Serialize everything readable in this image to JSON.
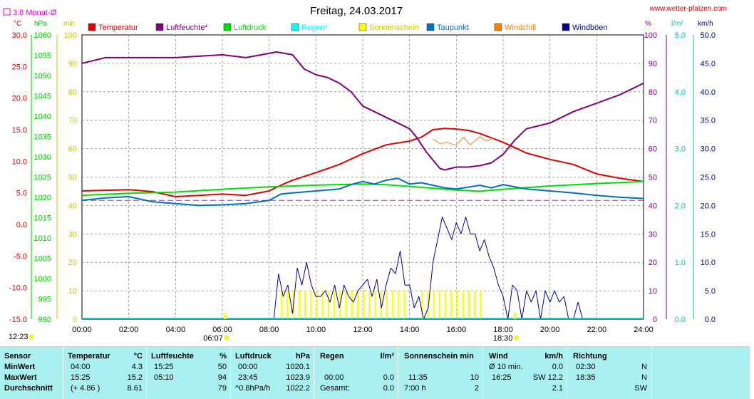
{
  "header": {
    "title": "Freitag, 24.03.2017",
    "website": "www.wetter-pfalzen.com",
    "monthly_avg_label": "3.8 Monat-Ø"
  },
  "axes": {
    "left_units": [
      "°C",
      "hPa",
      "min"
    ],
    "right_units": [
      "%",
      "l/m²",
      "km/h"
    ],
    "temp_ticks": [
      "30.0",
      "25.0",
      "20.0",
      "15.0",
      "10.0",
      "5.0",
      "0.0",
      "-5.0",
      "-10.0",
      "-15.0"
    ],
    "pressure_ticks": [
      "1060",
      "1055",
      "1050",
      "1045",
      "1040",
      "1035",
      "1030",
      "1025",
      "1020",
      "1015",
      "1010",
      "1005",
      "1000",
      "995",
      "990"
    ],
    "min_ticks": [
      "100",
      "90",
      "80",
      "70",
      "60",
      "50",
      "40",
      "30",
      "20",
      "10",
      "0"
    ],
    "humidity_ticks": [
      "100",
      "90",
      "80",
      "70",
      "60",
      "50",
      "40",
      "30",
      "20",
      "10",
      "0"
    ],
    "rain_ticks": [
      "5.0",
      "4.0",
      "3.0",
      "2.0",
      "1.0",
      "0.0"
    ],
    "wind_ticks": [
      "50.0",
      "45.0",
      "40.0",
      "35.0",
      "30.0",
      "25.0",
      "20.0",
      "15.0",
      "10.0",
      "5.0",
      "0.0"
    ],
    "time_ticks": [
      "00:00",
      "02:00",
      "04:00",
      "06:00",
      "08:00",
      "10:00",
      "12:00",
      "14:00",
      "16:00",
      "18:00",
      "20:00",
      "22:00",
      "24:00"
    ],
    "sunrise": "06:07",
    "sunset": "18:30",
    "sunshine_time": "12:23"
  },
  "legend": [
    {
      "label": "Temperatur",
      "color": "#e00000"
    },
    {
      "label": "Luftfeuchte*",
      "color": "#800080"
    },
    {
      "label": "Luftdruck",
      "color": "#00e000"
    },
    {
      "label": "Regen*",
      "color": "#00ffff"
    },
    {
      "label": "Sonnenschein",
      "color": "#ffff00"
    },
    {
      "label": "Taupunkt",
      "color": "#0070c0"
    },
    {
      "label": "Windchill",
      "color": "#ff8000"
    },
    {
      "label": "Windböen",
      "color": "#000090"
    }
  ],
  "chart_data": {
    "type": "line",
    "title": "Freitag, 24.03.2017",
    "x_unit": "hours",
    "xlim": [
      0,
      24
    ],
    "series": [
      {
        "name": "Temperatur",
        "axis": "temp",
        "ylim": [
          -15,
          30
        ],
        "points": [
          [
            0,
            5.3
          ],
          [
            1,
            5.4
          ],
          [
            2,
            5.5
          ],
          [
            3,
            5.2
          ],
          [
            4,
            4.4
          ],
          [
            5,
            4.6
          ],
          [
            6,
            4.8
          ],
          [
            7,
            4.6
          ],
          [
            8,
            5.3
          ],
          [
            8.5,
            6.2
          ],
          [
            9,
            7.0
          ],
          [
            10,
            8.2
          ],
          [
            11,
            9.5
          ],
          [
            12,
            11.2
          ],
          [
            13,
            12.6
          ],
          [
            14,
            13.2
          ],
          [
            14.5,
            13.8
          ],
          [
            15,
            15.0
          ],
          [
            15.5,
            15.2
          ],
          [
            16,
            15.1
          ],
          [
            16.5,
            14.9
          ],
          [
            17,
            14.4
          ],
          [
            18,
            13.0
          ],
          [
            19,
            11.3
          ],
          [
            20,
            10.3
          ],
          [
            21,
            9.5
          ],
          [
            22,
            8.0
          ],
          [
            23,
            7.3
          ],
          [
            24,
            6.8
          ]
        ]
      },
      {
        "name": "Luftfeuchte*",
        "axis": "humidity",
        "ylim": [
          0,
          100
        ],
        "points": [
          [
            0,
            90
          ],
          [
            1,
            92
          ],
          [
            2,
            92
          ],
          [
            3,
            92
          ],
          [
            4,
            92
          ],
          [
            5,
            92.5
          ],
          [
            6,
            93
          ],
          [
            7,
            92
          ],
          [
            8,
            93.5
          ],
          [
            8.3,
            94
          ],
          [
            9,
            93
          ],
          [
            9.5,
            88
          ],
          [
            10,
            86
          ],
          [
            10.5,
            85
          ],
          [
            11,
            83
          ],
          [
            11.5,
            80
          ],
          [
            12,
            75
          ],
          [
            13,
            71
          ],
          [
            13.5,
            69
          ],
          [
            14,
            67
          ],
          [
            14.3,
            64
          ],
          [
            14.7,
            59
          ],
          [
            15,
            56
          ],
          [
            15.3,
            53
          ],
          [
            15.5,
            52.5
          ],
          [
            16,
            53.5
          ],
          [
            16.5,
            53.5
          ],
          [
            17,
            54
          ],
          [
            17.5,
            55
          ],
          [
            18,
            58
          ],
          [
            18.5,
            63
          ],
          [
            19,
            67
          ],
          [
            20,
            69
          ],
          [
            21,
            73
          ],
          [
            22,
            76
          ],
          [
            23,
            79
          ],
          [
            24,
            83
          ]
        ]
      },
      {
        "name": "Luftdruck",
        "axis": "pressure",
        "ylim": [
          990,
          1060
        ],
        "points": [
          [
            0,
            1020.5
          ],
          [
            2,
            1021.0
          ],
          [
            4,
            1021.3
          ],
          [
            6,
            1022.0
          ],
          [
            8,
            1022.6
          ],
          [
            10,
            1023.0
          ],
          [
            12,
            1023.3
          ],
          [
            13,
            1023.1
          ],
          [
            14,
            1022.7
          ],
          [
            16,
            1021.8
          ],
          [
            17,
            1021.5
          ],
          [
            18,
            1022.0
          ],
          [
            20,
            1022.8
          ],
          [
            22,
            1023.4
          ],
          [
            24,
            1023.9
          ]
        ]
      },
      {
        "name": "Taupunkt",
        "axis": "temp",
        "ylim": [
          -15,
          30
        ],
        "points": [
          [
            0,
            3.8
          ],
          [
            1,
            4.2
          ],
          [
            2,
            4.4
          ],
          [
            3,
            3.6
          ],
          [
            4,
            3.3
          ],
          [
            5,
            3.0
          ],
          [
            6,
            3.1
          ],
          [
            7,
            3.3
          ],
          [
            8,
            3.8
          ],
          [
            8.5,
            4.8
          ],
          [
            9,
            5.0
          ],
          [
            10,
            5.3
          ],
          [
            11,
            5.6
          ],
          [
            11.5,
            6.3
          ],
          [
            12,
            6.8
          ],
          [
            12.5,
            6.4
          ],
          [
            13,
            7.0
          ],
          [
            13.5,
            7.3
          ],
          [
            14,
            6.4
          ],
          [
            14.5,
            6.6
          ],
          [
            15,
            6.2
          ],
          [
            15.5,
            5.8
          ],
          [
            16,
            5.6
          ],
          [
            16.5,
            5.9
          ],
          [
            17,
            6.2
          ],
          [
            17.5,
            5.8
          ],
          [
            18,
            6.3
          ],
          [
            19,
            5.6
          ],
          [
            20,
            5.3
          ],
          [
            21,
            5.0
          ],
          [
            22,
            4.6
          ],
          [
            23,
            4.3
          ],
          [
            24,
            4.1
          ]
        ]
      },
      {
        "name": "Windchill",
        "axis": "temp",
        "ylim": [
          -15,
          30
        ],
        "points": [
          [
            15,
            13.5
          ],
          [
            15.3,
            12.8
          ],
          [
            15.6,
            13.0
          ],
          [
            16,
            12.5
          ],
          [
            16.3,
            13.8
          ],
          [
            16.6,
            12.6
          ],
          [
            17,
            13.9
          ],
          [
            17.3,
            13.2
          ],
          [
            17.6,
            13.7
          ]
        ]
      },
      {
        "name": "Windböen",
        "axis": "wind",
        "ylim": [
          0,
          50
        ],
        "points": [
          [
            8.2,
            0
          ],
          [
            8.4,
            8
          ],
          [
            8.6,
            4
          ],
          [
            8.8,
            6
          ],
          [
            9,
            1
          ],
          [
            9.2,
            9
          ],
          [
            9.4,
            6
          ],
          [
            9.6,
            10
          ],
          [
            9.8,
            6
          ],
          [
            10,
            4
          ],
          [
            10.2,
            4
          ],
          [
            10.4,
            5
          ],
          [
            10.6,
            3
          ],
          [
            10.8,
            6
          ],
          [
            11,
            2
          ],
          [
            11.2,
            6
          ],
          [
            11.4,
            4
          ],
          [
            11.6,
            3
          ],
          [
            11.8,
            5
          ],
          [
            12,
            6
          ],
          [
            12.2,
            7
          ],
          [
            12.4,
            4
          ],
          [
            12.6,
            7
          ],
          [
            12.8,
            2
          ],
          [
            13,
            6
          ],
          [
            13.2,
            9
          ],
          [
            13.4,
            8
          ],
          [
            13.6,
            12
          ],
          [
            13.8,
            6
          ],
          [
            14,
            6
          ],
          [
            14.2,
            2
          ],
          [
            14.4,
            4
          ],
          [
            14.6,
            0
          ],
          [
            14.8,
            2
          ],
          [
            15,
            10
          ],
          [
            15.2,
            14
          ],
          [
            15.4,
            18
          ],
          [
            15.6,
            16
          ],
          [
            15.8,
            14
          ],
          [
            16,
            17
          ],
          [
            16.2,
            15
          ],
          [
            16.4,
            18
          ],
          [
            16.6,
            15
          ],
          [
            16.8,
            15
          ],
          [
            17,
            12
          ],
          [
            17.2,
            14
          ],
          [
            17.4,
            11
          ],
          [
            17.6,
            9
          ],
          [
            17.8,
            6
          ],
          [
            18,
            4
          ],
          [
            18.2,
            0
          ],
          [
            18.4,
            6
          ],
          [
            18.6,
            5
          ],
          [
            18.8,
            0
          ],
          [
            19,
            5
          ],
          [
            19.2,
            3
          ],
          [
            19.4,
            5
          ],
          [
            19.6,
            0
          ],
          [
            19.8,
            5
          ],
          [
            20,
            3
          ],
          [
            20.2,
            5
          ],
          [
            20.4,
            3
          ],
          [
            20.6,
            4
          ],
          [
            20.8,
            0
          ],
          [
            21,
            0
          ],
          [
            21.2,
            3
          ],
          [
            21.4,
            0
          ]
        ]
      },
      {
        "name": "Sonnenschein",
        "axis": "minutes",
        "ylim": [
          0,
          100
        ],
        "bars": [
          [
            8.5,
            10
          ],
          [
            8.75,
            10
          ],
          [
            9,
            10
          ],
          [
            9.25,
            10
          ],
          [
            9.5,
            10
          ],
          [
            9.75,
            10
          ],
          [
            10,
            10
          ],
          [
            10.25,
            10
          ],
          [
            10.5,
            10
          ],
          [
            10.75,
            10
          ],
          [
            11,
            10
          ],
          [
            11.25,
            10
          ],
          [
            11.5,
            10
          ],
          [
            11.75,
            10
          ],
          [
            12,
            10
          ],
          [
            12.25,
            10
          ],
          [
            12.5,
            10
          ],
          [
            12.75,
            10
          ],
          [
            13,
            10
          ],
          [
            13.25,
            10
          ],
          [
            13.5,
            10
          ],
          [
            13.75,
            10
          ],
          [
            14.5,
            10
          ],
          [
            14.75,
            10
          ],
          [
            15,
            10
          ],
          [
            15.25,
            10
          ],
          [
            15.5,
            10
          ],
          [
            15.75,
            10
          ],
          [
            16,
            10
          ],
          [
            16.25,
            10
          ],
          [
            16.5,
            10
          ],
          [
            16.75,
            10
          ],
          [
            17,
            10
          ],
          [
            18.5,
            2
          ]
        ]
      }
    ],
    "reference_lines": [
      {
        "name": "monthly average",
        "axis": "temp",
        "value": 3.8,
        "color": "#e000e0"
      }
    ]
  },
  "table": {
    "headers": {
      "sensor": "Sensor",
      "temp": "Temperatur",
      "temp_unit": "°C",
      "hum": "Luftfeuchte",
      "hum_unit": "%",
      "press": "Luftdruck",
      "press_unit": "hPa",
      "rain": "Regen",
      "rain_unit": "l/m²",
      "sun": "Sonnenschein min",
      "wind": "Wind",
      "wind_unit": "km/h",
      "dir": "Richtung"
    },
    "rows": [
      {
        "label": "MinWert",
        "temp_time": "04:00",
        "temp_val": "4.3",
        "hum_time": "15:25",
        "hum_val": "50",
        "press_time": "00:00",
        "press_val": "1020.1",
        "rain_time": "",
        "rain_val": "",
        "sun_time": "",
        "sun_val": "",
        "wind_time": "Ø 10 min.",
        "wind_val": "0.0",
        "dir_time": "02:30",
        "dir_val": "N"
      },
      {
        "label": "MaxWert",
        "temp_time": "15:25",
        "temp_val": "15.2",
        "hum_time": "05:10",
        "hum_val": "94",
        "press_time": "23:45",
        "press_val": "1023.9",
        "rain_time": "00:00",
        "rain_val": "0.0",
        "sun_time": "11:35",
        "sun_val": "10",
        "wind_time": "16:25",
        "wind_val": "SW 12.2",
        "dir_time": "18:35",
        "dir_val": "N"
      },
      {
        "label": "Durchschnitt",
        "temp_time": "(+ 4.86 )",
        "temp_val": "8.61",
        "hum_time": "",
        "hum_val": "79",
        "press_time": "^0.8hPa/h",
        "press_val": "1022.2",
        "rain_time": "Gesamt:",
        "rain_val": "0.0",
        "sun_time": "7:00 h",
        "sun_val": "2",
        "wind_time": "",
        "wind_val": "2.1",
        "dir_time": "",
        "dir_val": "SW"
      }
    ]
  }
}
